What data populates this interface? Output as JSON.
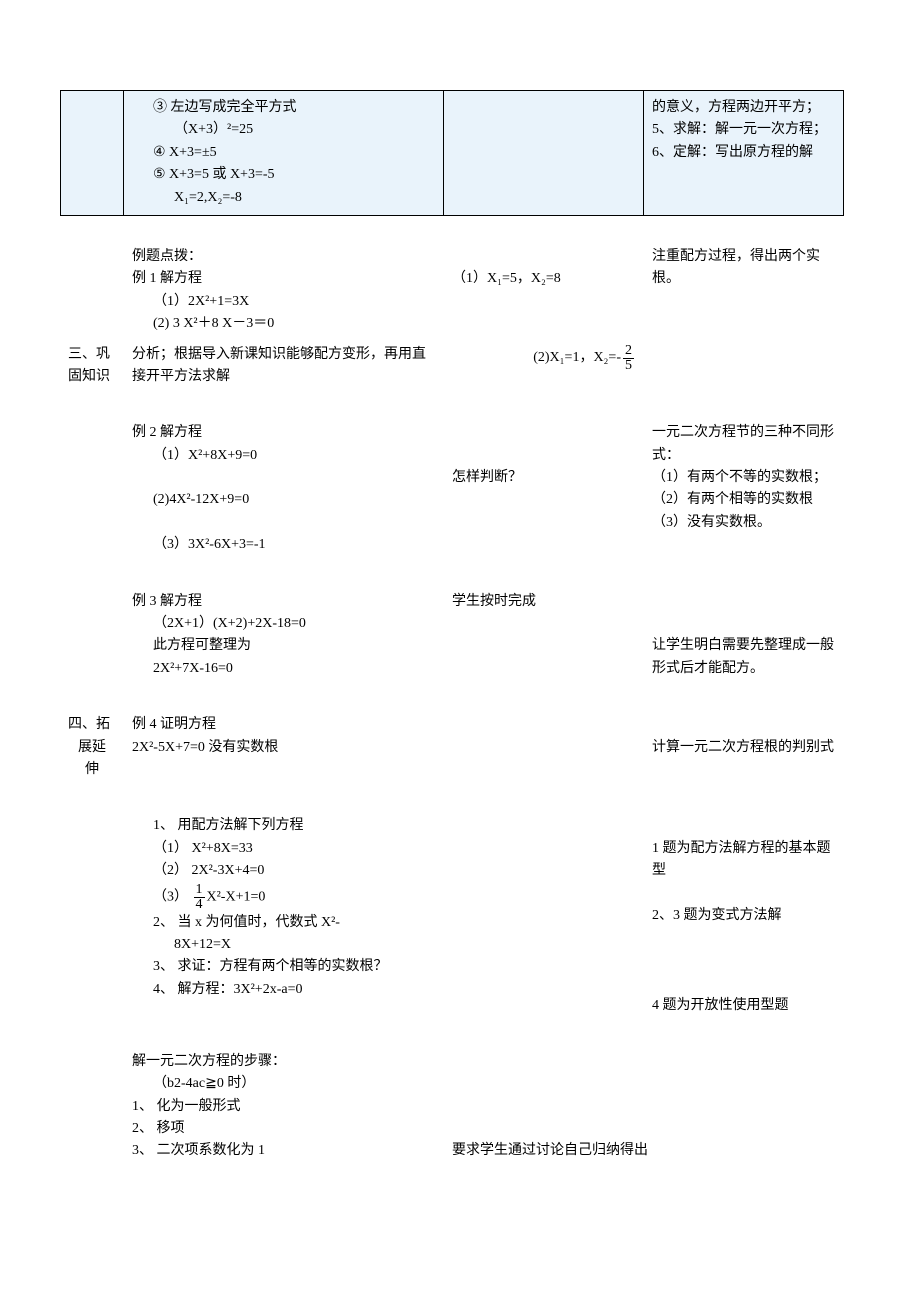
{
  "boxed": {
    "col1": "",
    "col2_lines": [
      "③ 左边写成完全平方式",
      "（X+3）²=25",
      "④ X+3=±5",
      "⑤ X+3=5 或 X+3=-5",
      "X₁=2,X₂=-8"
    ],
    "col3": "",
    "col4_lines": [
      "的意义，方程两边开平方；",
      "5、求解：解一元一次方程；",
      "6、定解：写出原方程的解"
    ]
  },
  "s3": {
    "label_a": "三、巩",
    "label_b": "固知识",
    "p1_l1": "例题点拨：",
    "p1_l2": "例 1 解方程",
    "p1_l3": "（1）2X²+1=3X",
    "p1_l4": "(2) 3 X²＋8 X－3＝0",
    "p1_l5": "分析；根据导入新课知识能够配方变形，再用直接开平方法求解",
    "r1": "（1）X₁=5，X₂=8",
    "r2_pre": "(2)X₁=1，X₂=-",
    "r2_num": "2",
    "r2_den": "5",
    "n1": "注重配方过程，得出两个实根。",
    "p2_l1": "例 2 解方程",
    "p2_l2": "（1）X²+8X+9=0",
    "p2_l3": "(2)4X²-12X+9=0",
    "p2_l4": "（3）3X²-6X+3=-1",
    "r3": "怎样判断？",
    "n2_l1": "一元二次方程节的三种不同形式：",
    "n2_l2": "（1）有两个不等的实数根；",
    "n2_l3": "（2）有两个相等的实数根",
    "n2_l4": "（3）没有实数根。",
    "p3_l1": "例 3 解方程",
    "p3_l2": "（2X+1）(X+2)+2X-18=0",
    "p3_l3": "此方程可整理为",
    "p3_l4": "2X²+7X-16=0",
    "r4": "学生按时完成",
    "n3": "让学生明白需要先整理成一般形式后才能配方。"
  },
  "s4": {
    "label_a": "四、拓",
    "label_b": "展延",
    "label_c": "伸",
    "p1_l1": "例 4 证明方程",
    "p1_l2": "2X²-5X+7=0 没有实数根",
    "n1": "计算一元二次方程根的判别式",
    "q1": "1、 用配方法解下列方程",
    "q1_1": "（1）   X²+8X=33",
    "q1_2": "（2）   2X²-3X+4=0",
    "q1_3_pre": "（3）   ",
    "q1_3_num": "1",
    "q1_3_den": "4",
    "q1_3_post": "X²-X+1=0",
    "q2_l1": "2、 当 x 为何值时，代数式 X²-",
    "q2_l2": "8X+12=X",
    "q3": "3、 求证：方程有两个相等的实数根？",
    "q4": "4、 解方程：3X²+2x-a=0",
    "n2": "1 题为配方法解方程的基本题型",
    "n3": "2、3 题为变式方法解",
    "n4": "4 题为开放性使用型题",
    "steps_l1": "解一元二次方程的步骤：",
    "steps_l2": "（b2-4ac≧0 时）",
    "steps_l3": "1、 化为一般形式",
    "steps_l4": "2、 移项",
    "steps_l5": "3、 二次项系数化为 1",
    "r_steps": "要求学生通过讨论自己归纳得出"
  }
}
